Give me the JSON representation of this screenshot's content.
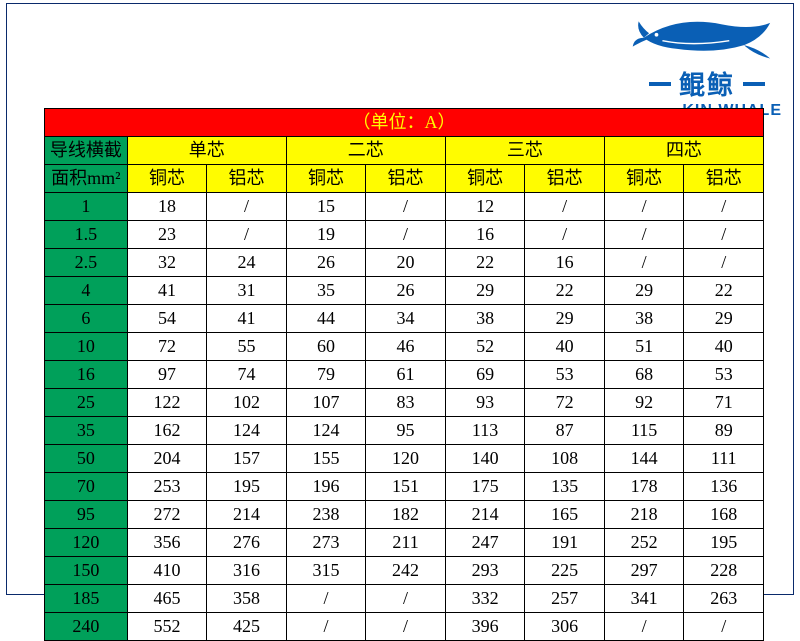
{
  "logo": {
    "cn": "鲲鲸",
    "en": "KIN WHALE",
    "color": "#0a5fb5"
  },
  "table": {
    "unit_label": "（单位：A）",
    "row_header": {
      "line1": "导线横截",
      "line2": "面积mm²"
    },
    "groups": [
      "单芯",
      "二芯",
      "三芯",
      "四芯"
    ],
    "subcols": [
      "铜芯",
      "铝芯"
    ],
    "sizes": [
      "1",
      "1.5",
      "2.5",
      "4",
      "6",
      "10",
      "16",
      "25",
      "35",
      "50",
      "70",
      "95",
      "120",
      "150",
      "185",
      "240"
    ],
    "rows": [
      [
        "18",
        "/",
        "15",
        "/",
        "12",
        "/",
        "/",
        "/"
      ],
      [
        "23",
        "/",
        "19",
        "/",
        "16",
        "/",
        "/",
        "/"
      ],
      [
        "32",
        "24",
        "26",
        "20",
        "22",
        "16",
        "/",
        "/"
      ],
      [
        "41",
        "31",
        "35",
        "26",
        "29",
        "22",
        "29",
        "22"
      ],
      [
        "54",
        "41",
        "44",
        "34",
        "38",
        "29",
        "38",
        "29"
      ],
      [
        "72",
        "55",
        "60",
        "46",
        "52",
        "40",
        "51",
        "40"
      ],
      [
        "97",
        "74",
        "79",
        "61",
        "69",
        "53",
        "68",
        "53"
      ],
      [
        "122",
        "102",
        "107",
        "83",
        "93",
        "72",
        "92",
        "71"
      ],
      [
        "162",
        "124",
        "124",
        "95",
        "113",
        "87",
        "115",
        "89"
      ],
      [
        "204",
        "157",
        "155",
        "120",
        "140",
        "108",
        "144",
        "111"
      ],
      [
        "253",
        "195",
        "196",
        "151",
        "175",
        "135",
        "178",
        "136"
      ],
      [
        "272",
        "214",
        "238",
        "182",
        "214",
        "165",
        "218",
        "168"
      ],
      [
        "356",
        "276",
        "273",
        "211",
        "247",
        "191",
        "252",
        "195"
      ],
      [
        "410",
        "316",
        "315",
        "242",
        "293",
        "225",
        "297",
        "228"
      ],
      [
        "465",
        "358",
        "/",
        "/",
        "332",
        "257",
        "341",
        "263"
      ],
      [
        "552",
        "425",
        "/",
        "/",
        "396",
        "306",
        "/",
        "/"
      ]
    ],
    "colors": {
      "title_bg": "#ff0000",
      "title_fg": "#fffc00",
      "green": "#00a05a",
      "yellow": "#fffc00",
      "border": "#000000",
      "cell_bg": "#ffffff"
    }
  }
}
